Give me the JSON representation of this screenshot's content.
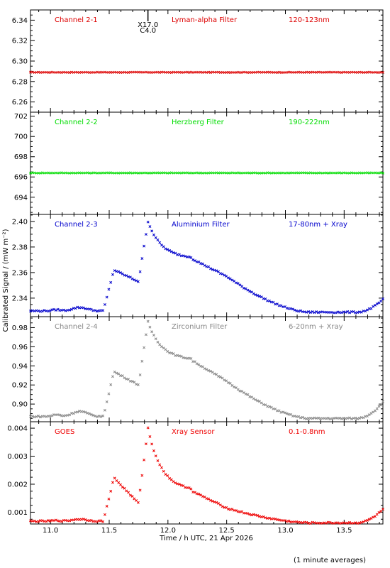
{
  "figure": {
    "ylabel": "Calibrated Signal / (mW m⁻²)",
    "xlabel": "Time / h UTC, 21 Apr 2026",
    "footnote": "(1 minute averages)",
    "event_marker": {
      "line1": "X17.0",
      "line2": "C4.0",
      "x": 11.83
    }
  },
  "chart_data": [
    {
      "type": "scatter",
      "panel": "channel-2-1",
      "labels": [
        "Channel 2-1",
        "Lyman-alpha Filter",
        "120-123nm"
      ],
      "color": "#dd0000",
      "xlim": [
        10.83,
        13.83
      ],
      "ylim": [
        6.25,
        6.35
      ],
      "yticks": [
        6.26,
        6.28,
        6.3,
        6.32,
        6.34
      ],
      "ytick_labels": [
        "6.26",
        "6.28",
        "6.30",
        "6.32",
        "6.34"
      ],
      "shape": "flat",
      "params": {
        "base": 6.289
      }
    },
    {
      "type": "scatter",
      "panel": "channel-2-2",
      "labels": [
        "Channel 2-2",
        "Herzberg Filter",
        "190-222nm"
      ],
      "color": "#00dd00",
      "xlim": [
        10.83,
        13.83
      ],
      "ylim": [
        692.3,
        702.4
      ],
      "yticks": [
        694,
        696,
        698,
        700,
        702
      ],
      "ytick_labels": [
        "694",
        "696",
        "698",
        "700",
        "702"
      ],
      "shape": "flat",
      "params": {
        "base": 696.4
      }
    },
    {
      "type": "scatter",
      "panel": "channel-2-3",
      "labels": [
        "Channel 2-3",
        "Aluminium Filter",
        "17-80nm + Xray"
      ],
      "color": "#0000cc",
      "xlim": [
        10.83,
        13.83
      ],
      "ylim": [
        2.3255,
        2.4055
      ],
      "yticks": [
        2.34,
        2.36,
        2.38,
        2.4
      ],
      "ytick_labels": [
        "2.34",
        "2.36",
        "2.38",
        "2.40"
      ],
      "shape": "flare",
      "params": {
        "base": 2.33,
        "bump": 0.003,
        "f1": 2.362,
        "pre": 2.353,
        "peak": 2.4,
        "mid": 2.371,
        "bump2": 2.357,
        "low": 2.329,
        "end": 2.339
      }
    },
    {
      "type": "scatter",
      "panel": "channel-2-4",
      "labels": [
        "Channel 2-4",
        "Zirconium Filter",
        "6-20nm + Xray"
      ],
      "color": "#888888",
      "xlim": [
        10.83,
        13.83
      ],
      "ylim": [
        0.8815,
        0.9915
      ],
      "yticks": [
        0.9,
        0.92,
        0.94,
        0.96,
        0.98
      ],
      "ytick_labels": [
        "0.90",
        "0.92",
        "0.94",
        "0.96",
        "0.98"
      ],
      "shape": "flare",
      "params": {
        "base": 0.887,
        "bump": 0.006,
        "f1": 0.934,
        "pre": 0.92,
        "peak": 0.986,
        "mid": 0.946,
        "bump2": 0.924,
        "low": 0.885,
        "end": 0.902
      }
    },
    {
      "type": "scatter",
      "panel": "goes",
      "labels": [
        "GOES",
        "Xray Sensor",
        "0.1-0.8nm"
      ],
      "color": "#ee0000",
      "xlim": [
        10.83,
        13.83
      ],
      "ylim": [
        0.00058,
        0.00423
      ],
      "yticks": [
        0.001,
        0.002,
        0.003,
        0.004
      ],
      "ytick_labels": [
        "0.001",
        "0.002",
        "0.003",
        "0.004"
      ],
      "shape": "flare",
      "params": {
        "base": 0.00068,
        "bump": 8e-05,
        "f1": 0.00223,
        "pre": 0.00132,
        "peak": 0.004,
        "mid": 0.00176,
        "bump2": 0.00115,
        "low": 0.00062,
        "end": 0.0011
      }
    }
  ],
  "xaxis": {
    "ticks": [
      11.0,
      11.5,
      12.0,
      12.5,
      13.0,
      13.5
    ],
    "tick_labels": [
      "11.0",
      "11.5",
      "12.0",
      "12.5",
      "13.0",
      "13.5"
    ]
  }
}
